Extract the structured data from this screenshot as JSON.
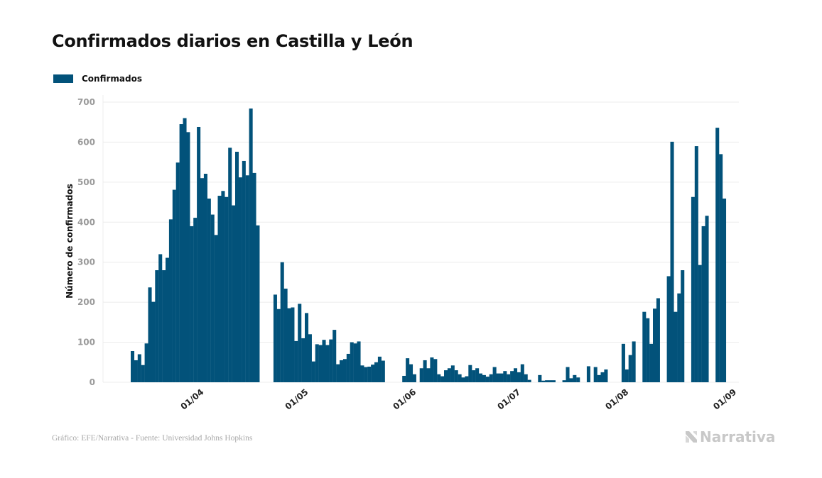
{
  "header": {
    "title": "Confirmados diarios en Castilla y León"
  },
  "legend": {
    "label": "Confirmados",
    "color": "#02527a"
  },
  "footer": {
    "source": "Gráfico: EFE/Narrativa - Fuente: Universidad Johns Hopkins",
    "brand": "Narrativa"
  },
  "chart_data": {
    "type": "bar",
    "title": "Confirmados diarios en Castilla y León",
    "xlabel": "",
    "ylabel": "Número de confirmados",
    "ylim": [
      0,
      700
    ],
    "yticks": [
      0,
      100,
      200,
      300,
      400,
      500,
      600,
      700
    ],
    "grid": true,
    "legend_position": "top-left",
    "x_start_date": "13/03",
    "xticks": [
      "01/04",
      "01/05",
      "01/06",
      "01/07",
      "01/08",
      "01/09"
    ],
    "xtick_day_index": [
      19,
      49,
      80,
      110,
      141,
      172
    ],
    "series": [
      {
        "name": "Confirmados",
        "color": "#02527a",
        "values": [
          78,
          55,
          70,
          43,
          97,
          237,
          201,
          280,
          320,
          280,
          311,
          407,
          481,
          549,
          645,
          660,
          625,
          390,
          411,
          638,
          510,
          521,
          459,
          419,
          368,
          466,
          478,
          463,
          586,
          442,
          576,
          512,
          553,
          517,
          684,
          523,
          392,
          null,
          null,
          null,
          null,
          219,
          183,
          300,
          234,
          185,
          187,
          103,
          196,
          110,
          173,
          120,
          52,
          95,
          93,
          106,
          93,
          107,
          131,
          45,
          55,
          58,
          71,
          100,
          97,
          102,
          42,
          38,
          39,
          44,
          50,
          64,
          54,
          null,
          null,
          null,
          null,
          null,
          16,
          60,
          45,
          20,
          null,
          35,
          55,
          35,
          62,
          58,
          20,
          15,
          30,
          35,
          42,
          30,
          20,
          12,
          15,
          43,
          30,
          35,
          22,
          18,
          14,
          20,
          38,
          22,
          22,
          28,
          20,
          28,
          35,
          25,
          45,
          20,
          6,
          null,
          null,
          18,
          4,
          5,
          5,
          5,
          null,
          null,
          5,
          38,
          10,
          18,
          12,
          null,
          null,
          40,
          null,
          38,
          18,
          25,
          32,
          null,
          null,
          null,
          null,
          96,
          32,
          68,
          102,
          null,
          null,
          176,
          160,
          96,
          184,
          210,
          null,
          null,
          265,
          601,
          176,
          222,
          280,
          null,
          null,
          463,
          590,
          293,
          390,
          416,
          null,
          null,
          636,
          570,
          459
        ]
      }
    ]
  }
}
